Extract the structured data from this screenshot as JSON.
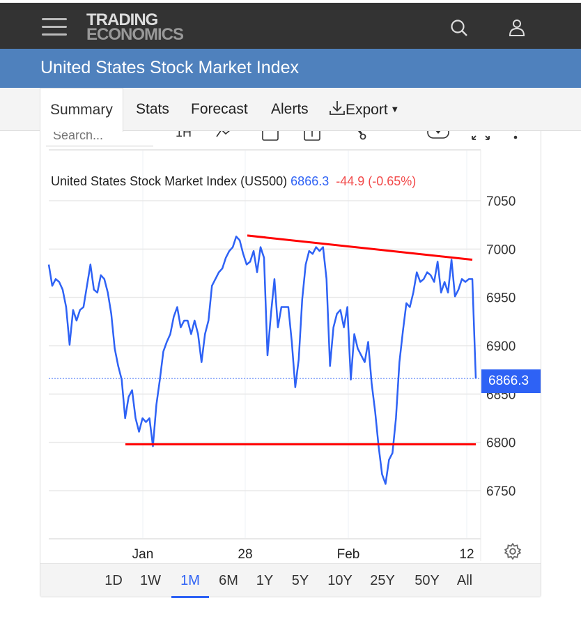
{
  "header": {
    "logo_line1": "TRADING",
    "logo_line2": "ECONOMICS",
    "icons": [
      "menu-icon",
      "search-icon",
      "user-icon"
    ]
  },
  "page_title": "United States Stock Market Index",
  "tabs": [
    {
      "label": "Summary",
      "active": true
    },
    {
      "label": "Stats"
    },
    {
      "label": "Forecast"
    },
    {
      "label": "Alerts"
    },
    {
      "label": "Export"
    }
  ],
  "toolbar": {
    "search_placeholder": "Search...",
    "interval_label": "1H"
  },
  "quote": {
    "name": "United States Stock Market Index (US500)",
    "price": "6866.3",
    "change": "-44.9 (-0.65%)"
  },
  "colors": {
    "series": "#2e62f5",
    "trendline": "#ff0000",
    "header": "#333333",
    "title_bar": "#4f81bd",
    "change": "#f24a4a"
  },
  "range_buttons": [
    "1D",
    "1W",
    "1M",
    "6M",
    "1Y",
    "5Y",
    "10Y",
    "25Y",
    "50Y",
    "All"
  ],
  "active_range": "1M",
  "chart_data": {
    "type": "line",
    "title": "United States Stock Market Index (US500)",
    "x_tick_labels": [
      "Jan",
      "28",
      "Feb",
      "12"
    ],
    "y_ticks": [
      7050,
      7000,
      6950,
      6900,
      6850,
      6800,
      6750
    ],
    "ylim": [
      6700,
      7100
    ],
    "y_axis_position": "right",
    "grid": true,
    "last_value": 6866.3,
    "last_value_label": "6866.3",
    "values": [
      6984,
      6962,
      6969,
      6966,
      6958,
      6940,
      6901,
      6937,
      6926,
      6937,
      6940,
      6962,
      6984,
      6958,
      6955,
      6973,
      6969,
      6955,
      6933,
      6897,
      6879,
      6865,
      6825,
      6847,
      6854,
      6825,
      6811,
      6825,
      6821,
      6825,
      6796,
      6839,
      6865,
      6894,
      6904,
      6912,
      6930,
      6940,
      6919,
      6926,
      6926,
      6912,
      6926,
      6912,
      6883,
      6912,
      6926,
      6962,
      6969,
      6976,
      6980,
      6991,
      6998,
      7002,
      7013,
      7009,
      6995,
      6984,
      6987,
      6998,
      6976,
      7002,
      6991,
      6890,
      6933,
      6969,
      6919,
      6940,
      6940,
      6940,
      6904,
      6857,
      6886,
      6948,
      6984,
      6998,
      6995,
      7002,
      6998,
      7002,
      6969,
      6879,
      6919,
      6933,
      6937,
      6919,
      6940,
      6865,
      6912,
      6897,
      6890,
      6883,
      6904,
      6861,
      6832,
      6796,
      6767,
      6757,
      6782,
      6789,
      6825,
      6883,
      6915,
      6944,
      6940,
      6955,
      6976,
      6966,
      6969,
      6976,
      6973,
      6966,
      6987,
      6955,
      6966,
      6955,
      6989,
      6951,
      6958,
      6969,
      6966,
      6969,
      6969,
      6866
    ],
    "trendlines": [
      {
        "name": "resistance",
        "from": 7014,
        "to": 6989
      },
      {
        "name": "support",
        "from": 6798,
        "to": 6798
      }
    ]
  }
}
